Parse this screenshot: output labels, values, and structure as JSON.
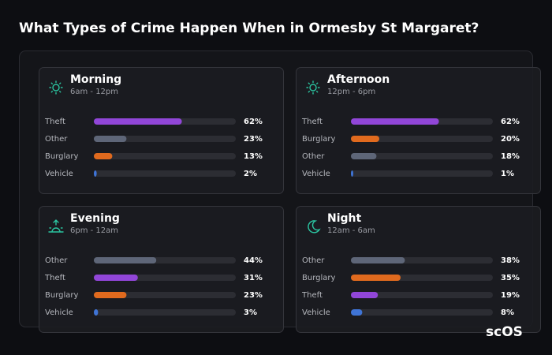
{
  "title": "What Types of Crime Happen When in Ormesby St Margaret?",
  "brand": "scOS",
  "chart_data": [
    {
      "type": "bar",
      "title": "Morning",
      "subtitle": "6am - 12pm",
      "categories": [
        "Theft",
        "Other",
        "Burglary",
        "Vehicle"
      ],
      "values": [
        62,
        23,
        13,
        2
      ],
      "value_labels": [
        "62%",
        "23%",
        "13%",
        "2%"
      ],
      "colors": [
        "#9146d8",
        "#5e6678",
        "#e06a1e",
        "#3f74d6"
      ],
      "xlim": [
        0,
        100
      ]
    },
    {
      "type": "bar",
      "title": "Afternoon",
      "subtitle": "12pm - 6pm",
      "categories": [
        "Theft",
        "Burglary",
        "Other",
        "Vehicle"
      ],
      "values": [
        62,
        20,
        18,
        1
      ],
      "value_labels": [
        "62%",
        "20%",
        "18%",
        "1%"
      ],
      "colors": [
        "#9146d8",
        "#e06a1e",
        "#5e6678",
        "#3f74d6"
      ],
      "xlim": [
        0,
        100
      ]
    },
    {
      "type": "bar",
      "title": "Evening",
      "subtitle": "6pm - 12am",
      "categories": [
        "Other",
        "Theft",
        "Burglary",
        "Vehicle"
      ],
      "values": [
        44,
        31,
        23,
        3
      ],
      "value_labels": [
        "44%",
        "31%",
        "23%",
        "3%"
      ],
      "colors": [
        "#5e6678",
        "#9146d8",
        "#e06a1e",
        "#3f74d6"
      ],
      "xlim": [
        0,
        100
      ]
    },
    {
      "type": "bar",
      "title": "Night",
      "subtitle": "12am - 6am",
      "categories": [
        "Other",
        "Burglary",
        "Theft",
        "Vehicle"
      ],
      "values": [
        38,
        35,
        19,
        8
      ],
      "value_labels": [
        "38%",
        "35%",
        "19%",
        "8%"
      ],
      "colors": [
        "#5e6678",
        "#e06a1e",
        "#9146d8",
        "#3f74d6"
      ],
      "xlim": [
        0,
        100
      ]
    }
  ]
}
